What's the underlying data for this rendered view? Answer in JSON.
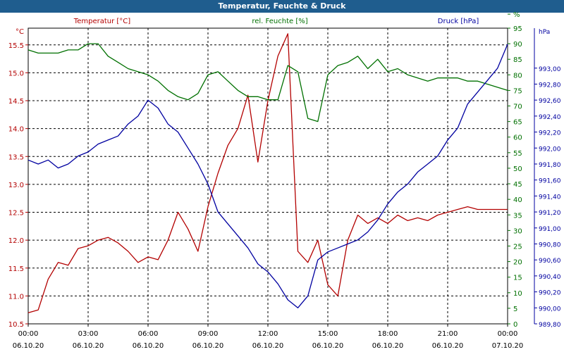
{
  "chart_data": {
    "type": "line",
    "title": "Temperatur, Feuchte & Druck",
    "x_ticks": [
      "00:00\n06.10.20",
      "03:00\n06.10.20",
      "06:00\n06.10.20",
      "09:00\n06.10.20",
      "12:00\n06.10.20",
      "15:00\n06.10.20",
      "18:00\n06.10.20",
      "21:00\n06.10.20",
      "00:00\n07.10.20"
    ],
    "x_range_hours": [
      0,
      24
    ],
    "axes": {
      "temperature": {
        "label": "Temperatur [°C]",
        "unit": "°C",
        "range": [
          10.5,
          15.8
        ],
        "ticks": [
          "10.5",
          "11.0",
          "11.5",
          "12.0",
          "12.5",
          "13.0",
          "13.5",
          "14.0",
          "14.5",
          "15.0",
          "15.5"
        ],
        "color": "#b30000"
      },
      "humidity": {
        "label": "rel. Feuchte [%]",
        "range": [
          0,
          95
        ],
        "ticks": [
          "0",
          "5",
          "10",
          "15",
          "20",
          "25",
          "30",
          "35",
          "40",
          "45",
          "50",
          "55",
          "60",
          "65",
          "70",
          "75",
          "80",
          "85",
          "90",
          "95",
          "%"
        ],
        "color": "#007000"
      },
      "pressure": {
        "label": "Druck [hPa]",
        "unit": "hPa",
        "range": [
          989.8,
          993.5
        ],
        "ticks": [
          "989,80",
          "990,00",
          "990,20",
          "990,40",
          "990,60",
          "990,80",
          "991,00",
          "991,20",
          "991,40",
          "991,60",
          "991,80",
          "992,00",
          "992,20",
          "992,40",
          "992,60",
          "992,80",
          "993,00"
        ],
        "color": "#0000a0"
      }
    },
    "grid": true,
    "series": [
      {
        "name": "Temperatur [°C]",
        "axis": "temperature",
        "x": [
          0,
          0.5,
          1,
          1.5,
          2,
          2.5,
          3,
          3.5,
          4,
          4.5,
          5,
          5.5,
          6,
          6.5,
          7,
          7.5,
          8,
          8.5,
          9,
          9.5,
          10,
          10.5,
          11,
          11.5,
          12,
          12.5,
          13,
          13.5,
          14,
          14.5,
          15,
          15.5,
          16,
          16.5,
          17,
          17.5,
          18,
          18.5,
          19,
          19.5,
          20,
          20.5,
          21,
          21.5,
          22,
          22.5,
          23,
          23.5,
          24
        ],
        "values": [
          10.7,
          10.75,
          11.3,
          11.6,
          11.55,
          11.85,
          11.9,
          12.0,
          12.05,
          11.95,
          11.8,
          11.6,
          11.7,
          11.65,
          12.0,
          12.5,
          12.2,
          11.8,
          12.6,
          13.2,
          13.7,
          14.0,
          14.6,
          13.4,
          14.5,
          15.3,
          15.7,
          11.8,
          11.6,
          12.0,
          11.2,
          11.0,
          12.0,
          12.45,
          12.3,
          12.4,
          12.3,
          12.45,
          12.35,
          12.4,
          12.35,
          12.45,
          12.5,
          12.55,
          12.6,
          12.55,
          12.55,
          12.55,
          12.55
        ]
      },
      {
        "name": "rel. Feuchte [%]",
        "axis": "humidity",
        "x": [
          0,
          0.5,
          1,
          1.5,
          2,
          2.5,
          3,
          3.5,
          4,
          4.5,
          5,
          5.5,
          6,
          6.5,
          7,
          7.5,
          8,
          8.5,
          9,
          9.5,
          10,
          10.5,
          11,
          11.5,
          12,
          12.5,
          13,
          13.5,
          14,
          14.5,
          15,
          15.5,
          16,
          16.5,
          17,
          17.5,
          18,
          18.5,
          19,
          19.5,
          20,
          20.5,
          21,
          21.5,
          22,
          22.5,
          23,
          23.5,
          24
        ],
        "values": [
          88,
          87,
          87,
          87,
          88,
          88,
          90,
          90,
          86,
          84,
          82,
          81,
          80,
          78,
          75,
          73,
          72,
          74,
          80,
          81,
          78,
          75,
          73,
          73,
          72,
          72,
          83,
          81,
          66,
          65,
          80,
          83,
          84,
          86,
          82,
          85,
          81,
          82,
          80,
          79,
          78,
          79,
          79,
          79,
          78,
          78,
          77,
          76,
          75
        ]
      },
      {
        "name": "Druck [hPa]",
        "axis": "pressure",
        "x": [
          0,
          0.5,
          1,
          1.5,
          2,
          2.5,
          3,
          3.5,
          4,
          4.5,
          5,
          5.5,
          6,
          6.5,
          7,
          7.5,
          8,
          8.5,
          9,
          9.5,
          10,
          10.5,
          11,
          11.5,
          12,
          12.5,
          13,
          13.5,
          14,
          14.5,
          15,
          15.5,
          16,
          16.5,
          17,
          17.5,
          18,
          18.5,
          19,
          19.5,
          20,
          20.5,
          21,
          21.5,
          22,
          22.5,
          23,
          23.5,
          24
        ],
        "values": [
          991.85,
          991.8,
          991.85,
          991.75,
          991.8,
          991.9,
          991.95,
          992.05,
          992.1,
          992.15,
          992.3,
          992.4,
          992.6,
          992.5,
          992.3,
          992.2,
          992.0,
          991.8,
          991.55,
          991.2,
          991.05,
          990.9,
          990.75,
          990.55,
          990.45,
          990.3,
          990.1,
          990.0,
          990.15,
          990.6,
          990.7,
          990.75,
          990.8,
          990.85,
          990.95,
          991.1,
          991.3,
          991.45,
          991.55,
          991.7,
          991.8,
          991.9,
          992.1,
          992.25,
          992.55,
          992.7,
          992.85,
          993.0,
          993.3
        ]
      }
    ]
  }
}
